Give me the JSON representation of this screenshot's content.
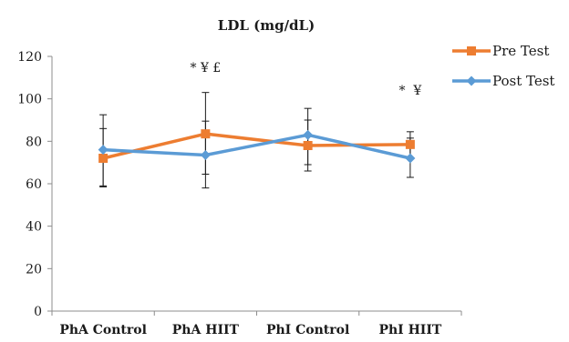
{
  "chart_data": {
    "type": "line",
    "title": "LDL (mg/dL)",
    "xlabel": "",
    "ylabel": "",
    "categories": [
      "PhA Control",
      "PhA HIIT",
      "PhI Control",
      "PhI HIIT"
    ],
    "ylim": [
      0,
      120
    ],
    "yticks": [
      0,
      20,
      40,
      60,
      80,
      100,
      120
    ],
    "grid": false,
    "legend_position": "top-right",
    "series": [
      {
        "name": "Pre Test",
        "color": "#ED7D31",
        "marker": "square",
        "values": [
          72,
          83.5,
          78,
          78.5
        ],
        "error_high": [
          92.5,
          103,
          95.5,
          84.5
        ],
        "error_low": [
          59,
          64.5,
          66,
          72
        ]
      },
      {
        "name": "Post Test",
        "color": "#5B9BD5",
        "marker": "diamond",
        "values": [
          76,
          73.5,
          83,
          72
        ],
        "error_high": [
          86,
          89.5,
          90,
          81.5
        ],
        "error_low": [
          58.5,
          58,
          69,
          63
        ]
      }
    ],
    "annotations": [
      {
        "category": "PhA HIIT",
        "text": "* ¥ £"
      },
      {
        "category": "PhI HIIT",
        "text": "*  ¥"
      }
    ]
  }
}
